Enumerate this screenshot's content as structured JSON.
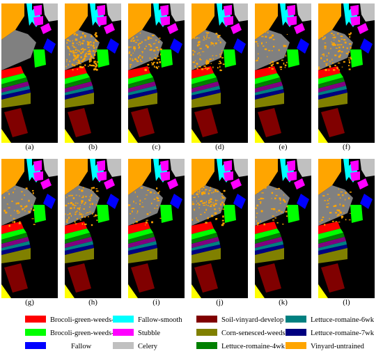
{
  "panels": [
    {
      "label": "(a)",
      "noise": "none"
    },
    {
      "label": "(b)",
      "noise": "heavy"
    },
    {
      "label": "(c)",
      "noise": "medium"
    },
    {
      "label": "(d)",
      "noise": "medium"
    },
    {
      "label": "(e)",
      "noise": "light"
    },
    {
      "label": "(f)",
      "noise": "medium"
    },
    {
      "label": "(g)",
      "noise": "light"
    },
    {
      "label": "(h)",
      "noise": "medium"
    },
    {
      "label": "(i)",
      "noise": "light"
    },
    {
      "label": "(j)",
      "noise": "medium"
    },
    {
      "label": "(k)",
      "noise": "light"
    },
    {
      "label": "(l)",
      "noise": "light"
    }
  ],
  "legend": [
    {
      "label": "Brocoli-green-weeds-1",
      "color": "#ff0000"
    },
    {
      "label": "Brocoli-green-weeds-2",
      "color": "#00ff00"
    },
    {
      "label": "Fallow",
      "color": "#0000ff"
    },
    {
      "label": "Fallow-smooth",
      "color": "#00ffff"
    },
    {
      "label": "Stubble",
      "color": "#ff00ff"
    },
    {
      "label": "Celery",
      "color": "#c0c0c0"
    },
    {
      "label": "Soil-vinyard-develop",
      "color": "#800000"
    },
    {
      "label": "Corn-senesced-weeds",
      "color": "#808000"
    },
    {
      "label": "Lettuce-romaine-4wk",
      "color": "#008000"
    },
    {
      "label": "Lettuce-romaine-6wk",
      "color": "#008080"
    },
    {
      "label": "Lettuce-romaine-7wk",
      "color": "#000080"
    },
    {
      "label": "Vinyard-untrained",
      "color": "#ffa500"
    }
  ],
  "class_colors": {
    "background": "#000000",
    "grapes_untrained": "#ffa500",
    "fallow_rough": "#00ffff",
    "stubble": "#ff00ff",
    "celery": "#c0c0c0",
    "fallow": "#0000ff",
    "grapes": "#808080",
    "brocoli_1": "#ff0000",
    "brocoli_2": "#00ff00",
    "lettuce_4wk": "#008000",
    "lettuce_5wk": "#800080",
    "lettuce_6wk": "#008080",
    "lettuce_7wk": "#000080",
    "corn": "#808000",
    "soil": "#800000",
    "vinyard_vertical": "#ffff00"
  }
}
